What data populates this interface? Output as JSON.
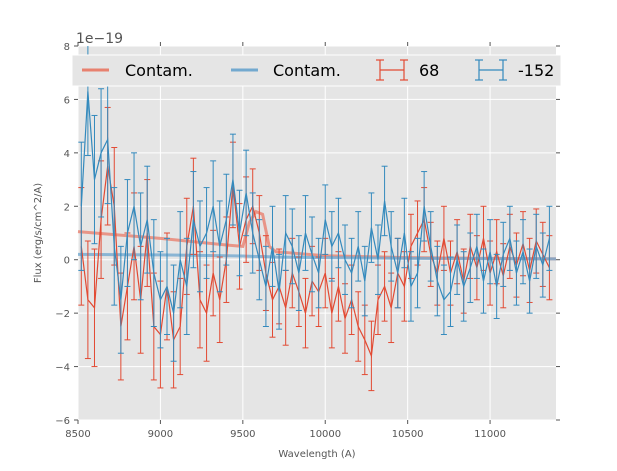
{
  "chart_data": {
    "type": "line",
    "title": "",
    "xlabel": "Wavelength (A)",
    "ylabel": "Flux (erg/s/cm^2/A)",
    "y_offset_label": "1e−19",
    "xlim": [
      8500,
      11400
    ],
    "ylim": [
      -6,
      8
    ],
    "xticks": [
      8500,
      9000,
      9500,
      10000,
      10500,
      11000
    ],
    "yticks": [
      -6,
      -4,
      -2,
      0,
      2,
      4,
      6,
      8
    ],
    "grid": true,
    "legend": {
      "placement": "top",
      "columns": 4
    },
    "colors": {
      "red": "#e24a33",
      "blue": "#348abd",
      "red_contam": "#e8816f",
      "blue_contam": "#73a9cf",
      "background": "#e5e5e5",
      "grid": "#ffffff"
    },
    "contam_series": [
      {
        "name": "Contam.",
        "color": "#e8816f",
        "x": [
          8500,
          9000,
          9400,
          9500,
          9540,
          9580,
          9620,
          9660,
          9700,
          10000,
          10500,
          11400
        ],
        "y": [
          1.05,
          0.8,
          0.55,
          0.5,
          1.4,
          1.8,
          1.7,
          0.5,
          0.3,
          0.15,
          0.08,
          0.03
        ]
      },
      {
        "name": "Contam.",
        "color": "#73a9cf",
        "x": [
          8500,
          9000,
          9400,
          9500,
          9540,
          9580,
          9620,
          9660,
          9700,
          10000,
          10500,
          11400
        ],
        "y": [
          0.2,
          0.18,
          0.15,
          0.14,
          0.13,
          0.12,
          0.12,
          0.11,
          0.1,
          0.08,
          0.05,
          0.03
        ]
      }
    ],
    "x": [
      8520,
      8560,
      8600,
      8640,
      8680,
      8720,
      8760,
      8800,
      8840,
      8880,
      8920,
      8960,
      9000,
      9040,
      9080,
      9120,
      9160,
      9200,
      9240,
      9280,
      9320,
      9360,
      9400,
      9440,
      9480,
      9520,
      9560,
      9600,
      9640,
      9680,
      9720,
      9760,
      9800,
      9840,
      9880,
      9920,
      9960,
      10000,
      10040,
      10080,
      10120,
      10160,
      10200,
      10240,
      10280,
      10320,
      10360,
      10400,
      10440,
      10480,
      10520,
      10560,
      10600,
      10640,
      10680,
      10720,
      10760,
      10800,
      10840,
      10880,
      10920,
      10960,
      11000,
      11040,
      11080,
      11120,
      11160,
      11200,
      11240,
      11280,
      11320,
      11360
    ],
    "series": [
      {
        "name": "68",
        "color": "#e24a33",
        "y": [
          0.5,
          -1.5,
          -1.8,
          1.5,
          3.5,
          2.0,
          -2.5,
          -1.0,
          0.5,
          -1.5,
          1.0,
          -2.5,
          -2.8,
          -1.0,
          -3.0,
          -2.5,
          0.5,
          2.0,
          -1.5,
          -2.0,
          -0.5,
          -1.5,
          0.0,
          2.8,
          0.5,
          1.5,
          2.0,
          1.0,
          -0.5,
          -1.5,
          -1.0,
          -1.8,
          -0.5,
          -1.2,
          -2.0,
          -0.8,
          -1.2,
          -0.5,
          -2.0,
          -1.0,
          -2.2,
          -1.5,
          -2.5,
          -3.0,
          -3.6,
          -1.5,
          -1.0,
          -1.8,
          -0.5,
          -1.0,
          0.5,
          1.0,
          1.5,
          0.2,
          -0.5,
          0.8,
          -0.5,
          0.3,
          -0.8,
          0.5,
          -0.3,
          0.8,
          -0.5,
          0.3,
          -0.6,
          0.5,
          -0.2,
          0.6,
          -0.4,
          0.7,
          0.2,
          -0.3
        ],
        "yerr": [
          2.2,
          2.2,
          2.2,
          2.2,
          2.2,
          2.2,
          2.0,
          2.0,
          2.0,
          2.0,
          2.0,
          2.0,
          2.0,
          2.0,
          1.8,
          1.8,
          1.8,
          1.8,
          1.8,
          1.8,
          1.6,
          1.6,
          1.6,
          1.6,
          1.6,
          1.6,
          1.4,
          1.4,
          1.4,
          1.4,
          1.4,
          1.4,
          1.3,
          1.3,
          1.3,
          1.3,
          1.3,
          1.3,
          1.3,
          1.3,
          1.3,
          1.3,
          1.3,
          1.3,
          1.3,
          1.3,
          1.3,
          1.3,
          1.3,
          1.3,
          1.2,
          1.2,
          1.2,
          1.2,
          1.2,
          1.2,
          1.2,
          1.2,
          1.2,
          1.2,
          1.2,
          1.2,
          1.2,
          1.2,
          1.2,
          1.2,
          1.2,
          1.2,
          1.2,
          1.2,
          1.2,
          1.2
        ]
      },
      {
        "name": "-152",
        "color": "#348abd",
        "y": [
          2.0,
          6.3,
          3.0,
          4.0,
          4.5,
          0.5,
          -1.5,
          1.0,
          2.0,
          0.5,
          1.5,
          -0.5,
          -1.5,
          -1.0,
          -2.0,
          0.0,
          -1.0,
          1.5,
          0.5,
          1.0,
          2.0,
          0.5,
          1.5,
          3.0,
          1.0,
          2.5,
          1.0,
          0.0,
          -1.0,
          0.5,
          -1.2,
          1.0,
          0.5,
          -0.5,
          1.0,
          0.2,
          -0.5,
          1.5,
          0.5,
          1.0,
          0.0,
          -0.5,
          0.5,
          -0.8,
          1.2,
          0.0,
          2.2,
          0.5,
          -0.5,
          1.0,
          -1.0,
          -0.5,
          2.0,
          0.5,
          -0.8,
          -1.5,
          -1.2,
          0.0,
          -1.0,
          -0.3,
          0.5,
          -0.8,
          0.3,
          -1.0,
          0.2,
          0.8,
          -0.5,
          0.3,
          -0.8,
          0.5,
          -0.2,
          0.8
        ],
        "yerr": [
          2.4,
          2.4,
          2.4,
          2.4,
          2.4,
          2.2,
          2.0,
          2.0,
          2.0,
          2.0,
          2.0,
          2.0,
          1.8,
          1.8,
          1.8,
          1.8,
          1.8,
          1.8,
          1.7,
          1.7,
          1.7,
          1.7,
          1.7,
          1.7,
          1.6,
          1.6,
          1.5,
          1.5,
          1.5,
          1.5,
          1.4,
          1.4,
          1.4,
          1.4,
          1.4,
          1.4,
          1.3,
          1.3,
          1.3,
          1.3,
          1.3,
          1.3,
          1.3,
          1.3,
          1.3,
          1.3,
          1.3,
          1.3,
          1.3,
          1.3,
          1.3,
          1.3,
          1.3,
          1.3,
          1.3,
          1.3,
          1.3,
          1.3,
          1.3,
          1.3,
          1.2,
          1.2,
          1.2,
          1.2,
          1.2,
          1.2,
          1.2,
          1.2,
          1.2,
          1.2,
          1.2,
          1.2
        ]
      }
    ],
    "legend_entries": [
      "Contam.",
      "Contam.",
      "68",
      "-152"
    ]
  }
}
